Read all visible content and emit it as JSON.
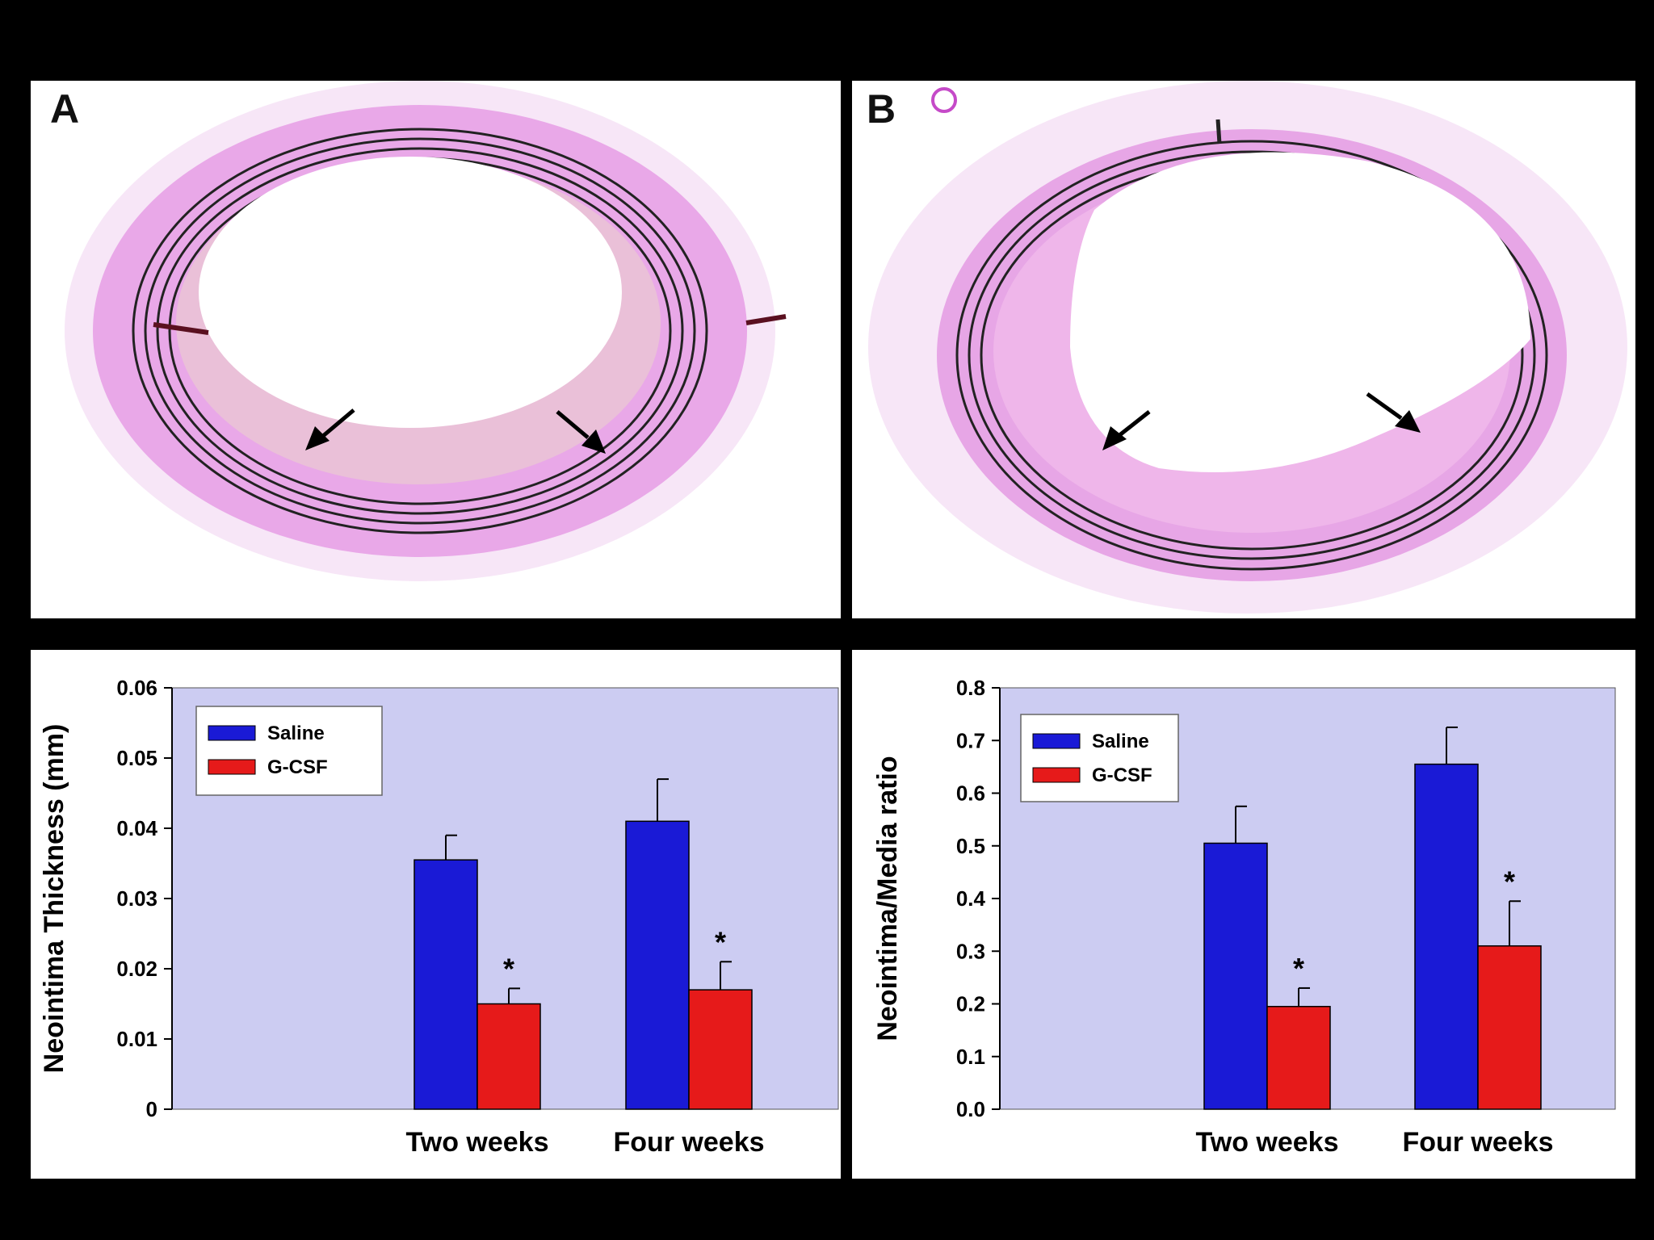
{
  "panels": {
    "a_label": "A",
    "b_label": "B"
  },
  "colors": {
    "saline": "#1a1ad6",
    "gcsf": "#e61a1a",
    "plot_bg": "#ccccf2",
    "stain": "#c54ac8"
  },
  "chart_data": [
    {
      "type": "bar",
      "ylabel": "Neointima Thickness (mm)",
      "xlabel": "",
      "categories": [
        "Two weeks",
        "Four weeks"
      ],
      "ylim": [
        0,
        0.06
      ],
      "yticks": [
        "0",
        "0.01",
        "0.02",
        "0.03",
        "0.04",
        "0.05",
        "0.06"
      ],
      "legend_position": "top-left",
      "series": [
        {
          "name": "Saline",
          "values": [
            0.0355,
            0.041
          ],
          "errors": [
            0.0035,
            0.006
          ]
        },
        {
          "name": "G-CSF",
          "values": [
            0.015,
            0.017
          ],
          "errors": [
            0.0022,
            0.004
          ]
        }
      ],
      "annotations": [
        {
          "category": "Two weeks",
          "series": "G-CSF",
          "text": "*"
        },
        {
          "category": "Four weeks",
          "series": "G-CSF",
          "text": "*"
        }
      ]
    },
    {
      "type": "bar",
      "ylabel": "Neointima/Media ratio",
      "xlabel": "",
      "categories": [
        "Two weeks",
        "Four weeks"
      ],
      "ylim": [
        0,
        0.8
      ],
      "yticks": [
        "0.0",
        "0.1",
        "0.2",
        "0.3",
        "0.4",
        "0.5",
        "0.6",
        "0.7",
        "0.8"
      ],
      "legend_position": "top-left",
      "series": [
        {
          "name": "Saline",
          "values": [
            0.505,
            0.655
          ],
          "errors": [
            0.07,
            0.07
          ]
        },
        {
          "name": "G-CSF",
          "values": [
            0.195,
            0.31
          ],
          "errors": [
            0.035,
            0.085
          ]
        }
      ],
      "annotations": [
        {
          "category": "Two weeks",
          "series": "G-CSF",
          "text": "*"
        },
        {
          "category": "Four weeks",
          "series": "G-CSF",
          "text": "*"
        }
      ]
    }
  ]
}
